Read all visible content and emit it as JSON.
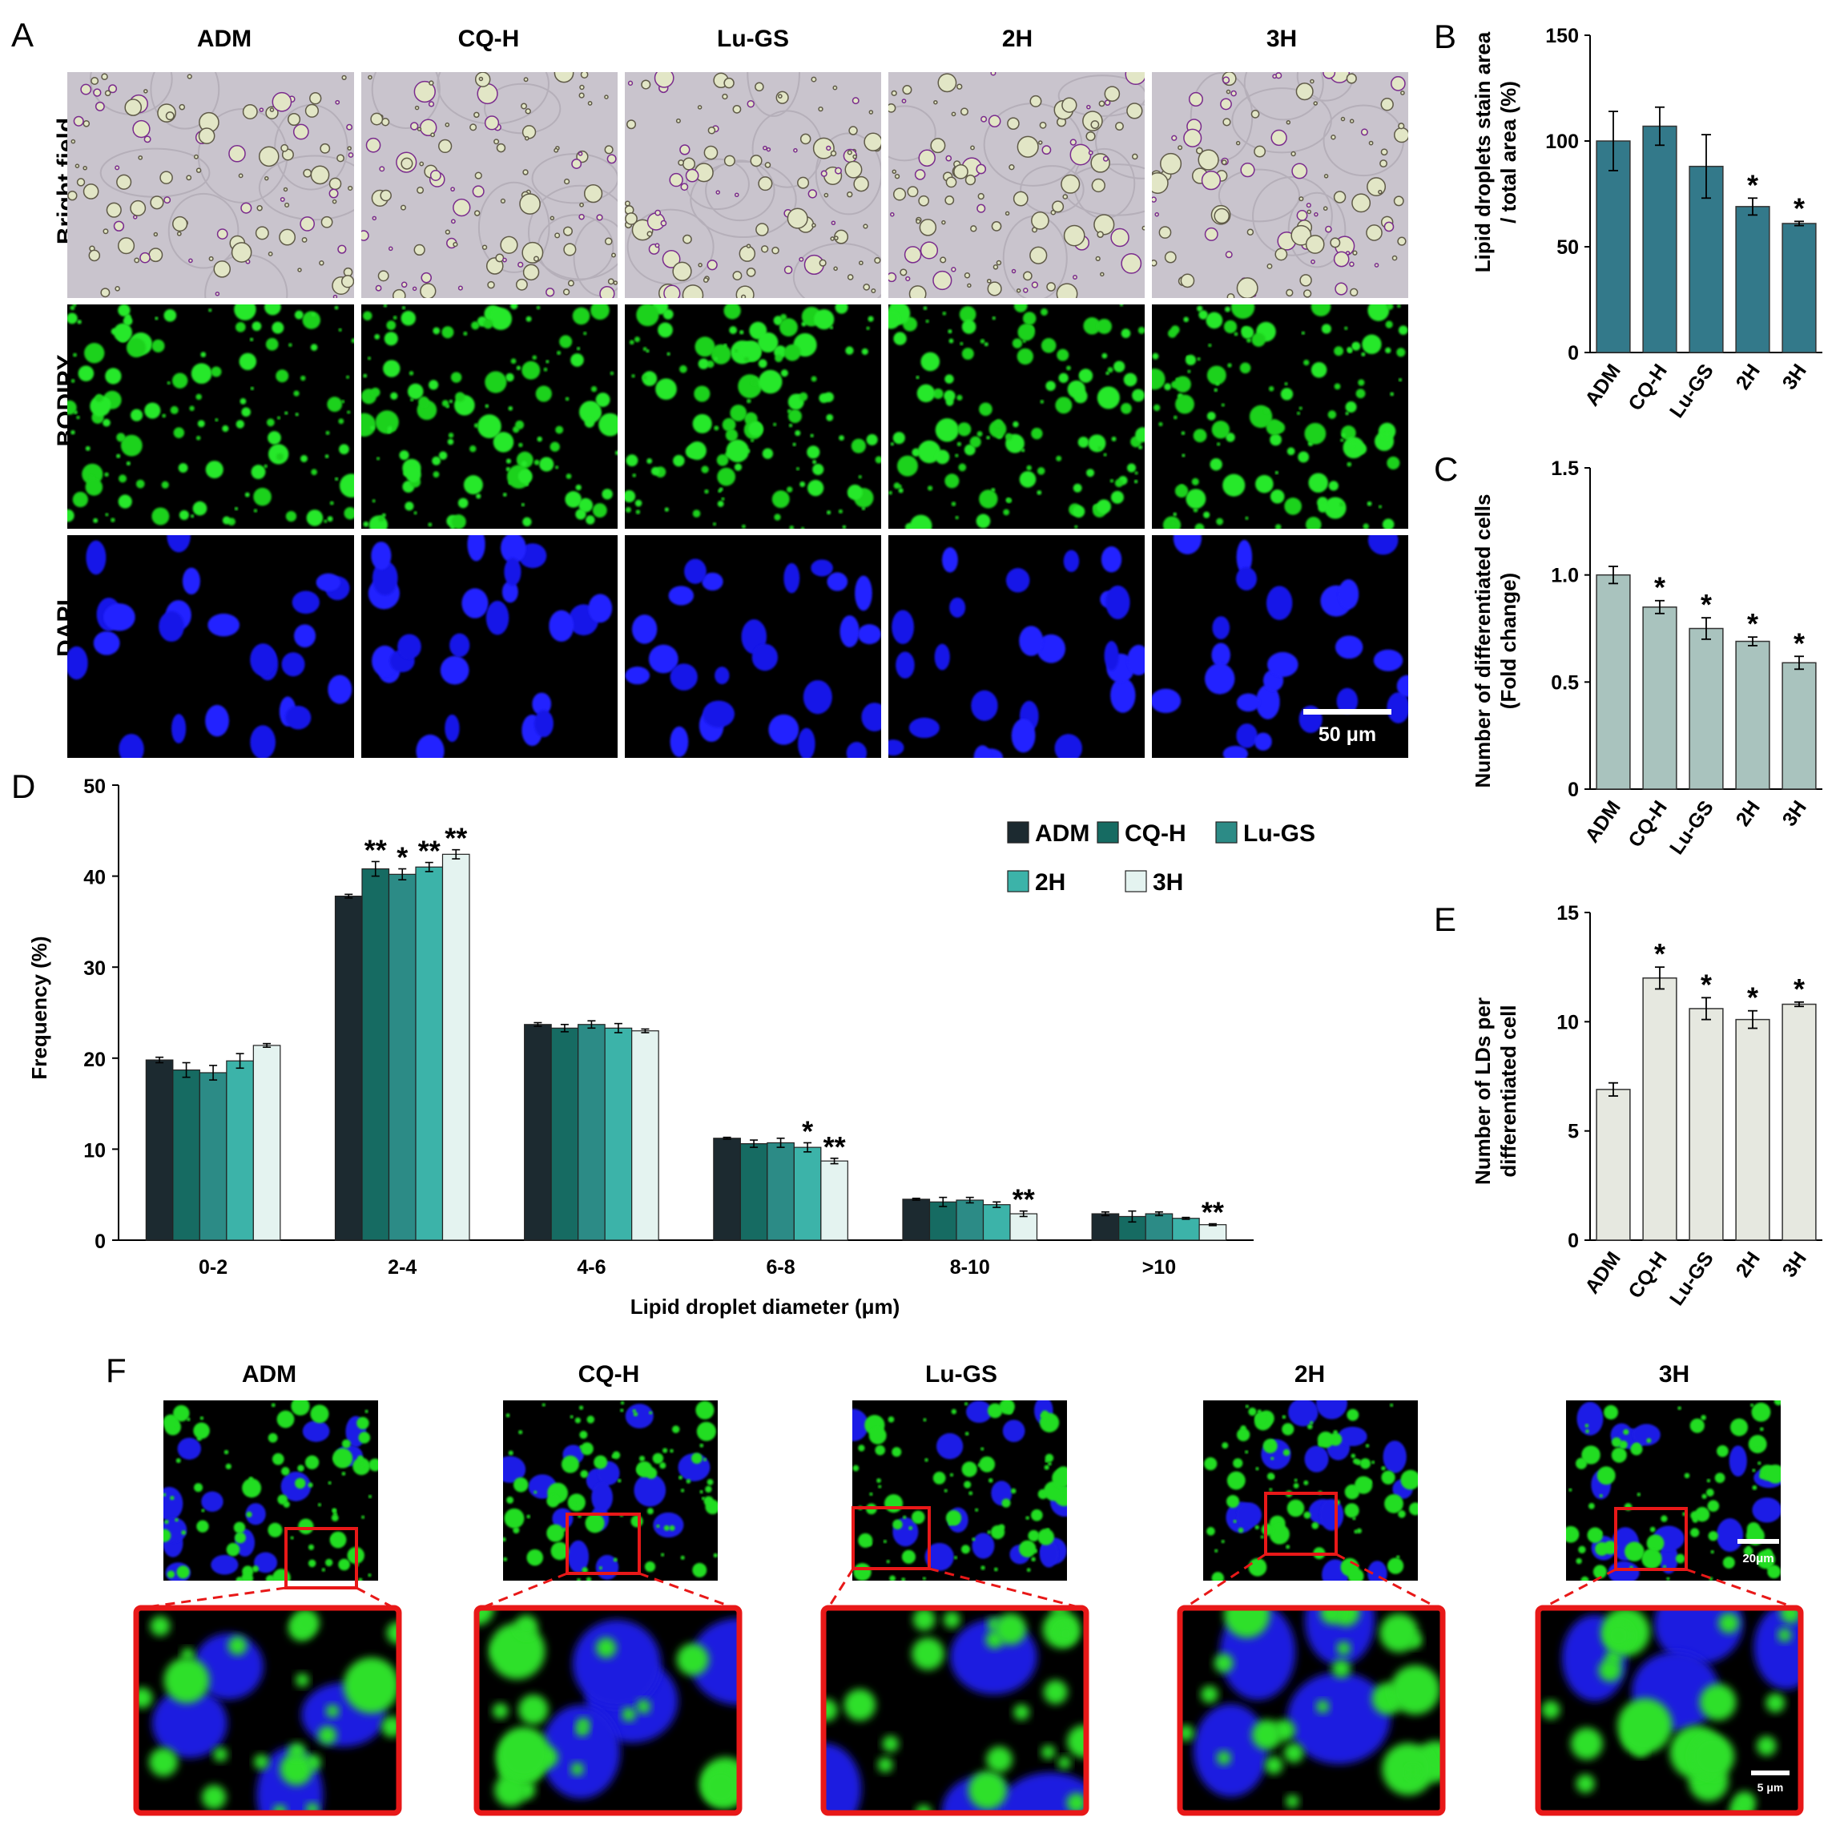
{
  "panel_labels": {
    "A": "A",
    "B": "B",
    "C": "C",
    "D": "D",
    "E": "E",
    "F": "F"
  },
  "panel_a": {
    "columns": [
      "ADM",
      "CQ-H",
      "Lu-GS",
      "2H",
      "3H"
    ],
    "rows": [
      {
        "label": "Bright field",
        "color": "#000000"
      },
      {
        "label": "BODIPY",
        "color": "#1ec81e"
      },
      {
        "label": "DAPI",
        "color": "#1a1aff"
      }
    ],
    "scale_bar": "50 μm"
  },
  "panel_f": {
    "columns": [
      "ADM",
      "CQ-H",
      "Lu-GS",
      "2H",
      "3H"
    ],
    "scale_bar_top": "20μm",
    "scale_bar_bottom": "5 μm",
    "inset_color": "#e81818"
  },
  "colors": {
    "B": "#33798a",
    "C": "#a9c3be",
    "E": "#e6e8e0",
    "D_series": [
      "#1c2a30",
      "#166b62",
      "#2c8b86",
      "#3cb3a9",
      "#e4f3f0"
    ]
  },
  "chart_data": [
    {
      "id": "B",
      "type": "bar",
      "title": "",
      "categories": [
        "ADM",
        "CQ-H",
        "Lu-GS",
        "2H",
        "3H"
      ],
      "values": [
        100,
        107,
        88,
        69,
        61
      ],
      "errors": [
        14,
        9,
        15,
        4,
        1
      ],
      "significance": [
        "",
        "",
        "",
        "*",
        "*"
      ],
      "ylabel_lines": [
        "Lipid droplets stain area",
        "/ total area (%)"
      ],
      "ylim": [
        0,
        150
      ],
      "yticks": [
        "0",
        "50",
        "100",
        "150"
      ],
      "grid": false
    },
    {
      "id": "C",
      "type": "bar",
      "title": "",
      "categories": [
        "ADM",
        "CQ-H",
        "Lu-GS",
        "2H",
        "3H"
      ],
      "values": [
        1.0,
        0.85,
        0.75,
        0.69,
        0.59
      ],
      "errors": [
        0.04,
        0.03,
        0.05,
        0.02,
        0.03
      ],
      "significance": [
        "",
        "*",
        "*",
        "*",
        "*"
      ],
      "ylabel_lines": [
        "Number of differentiated cells",
        "(Fold change)"
      ],
      "ylim": [
        0,
        1.5
      ],
      "yticks": [
        "0",
        "0.5",
        "1.0",
        "1.5"
      ],
      "grid": false
    },
    {
      "id": "D",
      "type": "bar",
      "title": "",
      "categories": [
        "0-2",
        "2-4",
        "4-6",
        "6-8",
        "8-10",
        ">10"
      ],
      "series": [
        {
          "name": "ADM",
          "values": [
            19.8,
            37.8,
            23.7,
            11.2,
            4.5,
            2.9
          ],
          "errors": [
            0.3,
            0.2,
            0.2,
            0.1,
            0.1,
            0.2
          ],
          "significance": [
            "",
            "",
            "",
            "",
            "",
            ""
          ]
        },
        {
          "name": "CQ-H",
          "values": [
            18.7,
            40.8,
            23.3,
            10.6,
            4.2,
            2.6
          ],
          "errors": [
            0.8,
            0.8,
            0.4,
            0.4,
            0.5,
            0.6
          ],
          "significance": [
            "",
            "**",
            "",
            "",
            "",
            ""
          ]
        },
        {
          "name": "Lu-GS",
          "values": [
            18.4,
            40.2,
            23.7,
            10.7,
            4.4,
            2.9
          ],
          "errors": [
            0.8,
            0.6,
            0.4,
            0.5,
            0.3,
            0.2
          ],
          "significance": [
            "",
            "*",
            "",
            "",
            "",
            ""
          ]
        },
        {
          "name": "2H",
          "values": [
            19.7,
            41.0,
            23.3,
            10.2,
            3.9,
            2.4
          ],
          "errors": [
            0.8,
            0.5,
            0.5,
            0.5,
            0.3,
            0.1
          ],
          "significance": [
            "",
            "**",
            "",
            "*",
            "",
            ""
          ]
        },
        {
          "name": "3H",
          "values": [
            21.4,
            42.4,
            23.0,
            8.7,
            2.9,
            1.7
          ],
          "errors": [
            0.2,
            0.5,
            0.2,
            0.3,
            0.3,
            0.1
          ],
          "significance": [
            "",
            "**",
            "",
            "**",
            "**",
            "**"
          ]
        }
      ],
      "xlabel": "Lipid droplet diameter (μm)",
      "ylabel": "Frequency (%)",
      "ylim": [
        0,
        50
      ],
      "yticks": [
        "0",
        "10",
        "20",
        "30",
        "40",
        "50"
      ],
      "legend": "top-right",
      "grid": false
    },
    {
      "id": "E",
      "type": "bar",
      "title": "",
      "categories": [
        "ADM",
        "CQ-H",
        "Lu-GS",
        "2H",
        "3H"
      ],
      "values": [
        6.9,
        12.0,
        10.6,
        10.1,
        10.8
      ],
      "errors": [
        0.3,
        0.5,
        0.5,
        0.4,
        0.1
      ],
      "significance": [
        "",
        "*",
        "*",
        "*",
        "*"
      ],
      "ylabel_lines": [
        "Number of LDs per",
        "differentiated cell"
      ],
      "ylim": [
        0,
        15
      ],
      "yticks": [
        "0",
        "5",
        "10",
        "15"
      ],
      "grid": false
    }
  ]
}
